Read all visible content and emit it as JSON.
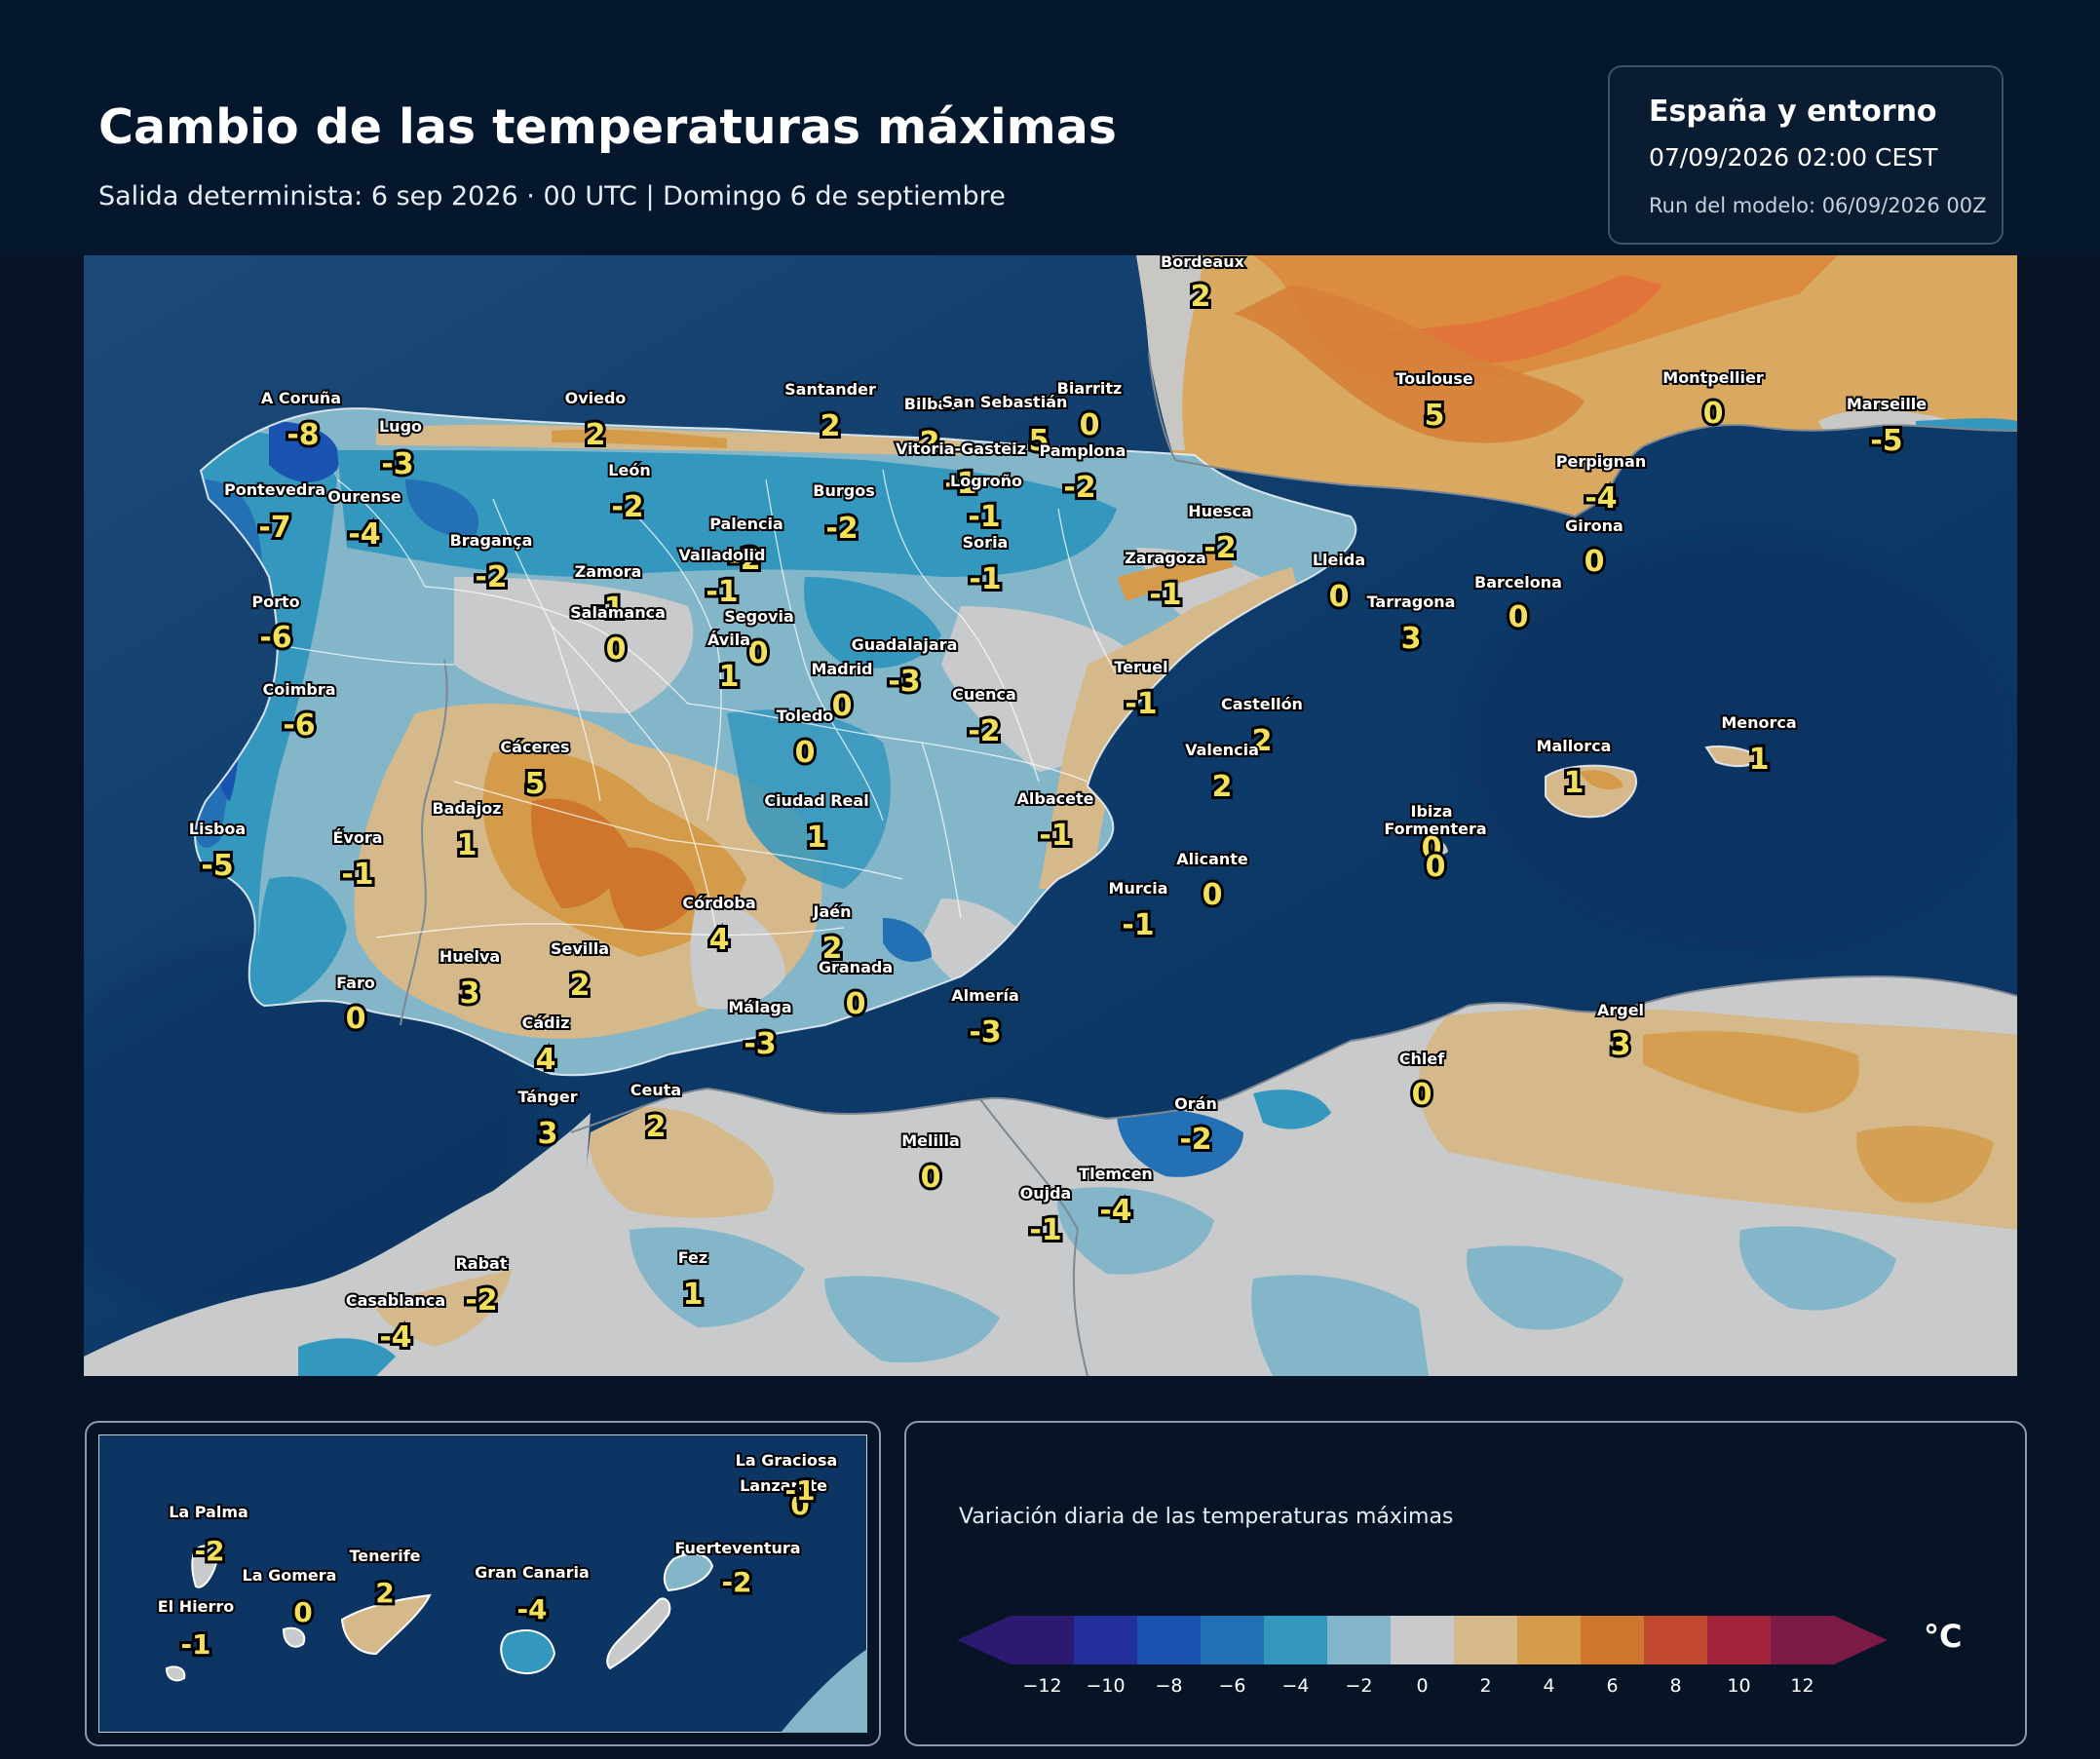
{
  "header": {
    "title": "Cambio de las temperaturas máximas",
    "subtitle": "Salida determinista: 6 sep 2026 · 00 UTC  |  Domingo 6 de septiembre"
  },
  "info": {
    "region": "España y entorno",
    "valid": "07/09/2026  02:00 CEST",
    "run": "Run del modelo: 06/09/2026 00Z"
  },
  "cities": [
    {
      "name": "Bordeaux",
      "value": "2"
    },
    {
      "name": "A Coruña",
      "value": "-8"
    },
    {
      "name": "Oviedo",
      "value": "2"
    },
    {
      "name": "Santander",
      "value": "2"
    },
    {
      "name": "Bilbao",
      "value": "2"
    },
    {
      "name": "Biarritz",
      "value": "0"
    },
    {
      "name": "San Sebastián",
      "value": "5"
    },
    {
      "name": "Vitoria-Gasteiz",
      "value": "-1"
    },
    {
      "name": "Pamplona",
      "value": "-2"
    },
    {
      "name": "Toulouse",
      "value": "5"
    },
    {
      "name": "Montpellier",
      "value": "0"
    },
    {
      "name": "Marseille",
      "value": "-5"
    },
    {
      "name": "Lugo",
      "value": "-3"
    },
    {
      "name": "León",
      "value": "-2"
    },
    {
      "name": "Pontevedra",
      "value": "-7"
    },
    {
      "name": "Ourense",
      "value": "-4"
    },
    {
      "name": "Logroño",
      "value": "-1"
    },
    {
      "name": "Burgos",
      "value": "-2"
    },
    {
      "name": "Palencia",
      "value": "-2"
    },
    {
      "name": "Perpignan",
      "value": "-4"
    },
    {
      "name": "Huesca",
      "value": "-2"
    },
    {
      "name": "Girona",
      "value": "0"
    },
    {
      "name": "Bragança",
      "value": "-2"
    },
    {
      "name": "Valladolid",
      "value": "-1"
    },
    {
      "name": "Soria",
      "value": "-1"
    },
    {
      "name": "Zaragoza",
      "value": "-1"
    },
    {
      "name": "Lleida",
      "value": "0"
    },
    {
      "name": "Zamora",
      "value": "-1"
    },
    {
      "name": "Barcelona",
      "value": "0"
    },
    {
      "name": "Porto",
      "value": "-6"
    },
    {
      "name": "Salamanca",
      "value": "0"
    },
    {
      "name": "Tarragona",
      "value": "3"
    },
    {
      "name": "Segovia",
      "value": "0"
    },
    {
      "name": "Ávila",
      "value": "1"
    },
    {
      "name": "Guadalajara",
      "value": "-3"
    },
    {
      "name": "Madrid",
      "value": "0"
    },
    {
      "name": "Teruel",
      "value": "-1"
    },
    {
      "name": "Coimbra",
      "value": "-6"
    },
    {
      "name": "Cuenca",
      "value": "-2"
    },
    {
      "name": "Toledo",
      "value": "0"
    },
    {
      "name": "Castellón",
      "value": "2"
    },
    {
      "name": "Menorca",
      "value": "1"
    },
    {
      "name": "Cáceres",
      "value": "5"
    },
    {
      "name": "Valencia",
      "value": "2"
    },
    {
      "name": "Mallorca",
      "value": "1"
    },
    {
      "name": "Badajoz",
      "value": "1"
    },
    {
      "name": "Ciudad Real",
      "value": "1"
    },
    {
      "name": "Albacete",
      "value": "-1"
    },
    {
      "name": "Ibiza",
      "value": "0"
    },
    {
      "name": "Formentera",
      "value": "0"
    },
    {
      "name": "Lisboa",
      "value": "-5"
    },
    {
      "name": "Évora",
      "value": "-1"
    },
    {
      "name": "Alicante",
      "value": "0"
    },
    {
      "name": "Córdoba",
      "value": "4"
    },
    {
      "name": "Murcia",
      "value": "-1"
    },
    {
      "name": "Jaén",
      "value": "2"
    },
    {
      "name": "Huelva",
      "value": "3"
    },
    {
      "name": "Sevilla",
      "value": "2"
    },
    {
      "name": "Granada",
      "value": "0"
    },
    {
      "name": "Faro",
      "value": "0"
    },
    {
      "name": "Almería",
      "value": "-3"
    },
    {
      "name": "Málaga",
      "value": "-3"
    },
    {
      "name": "Argel",
      "value": "3"
    },
    {
      "name": "Cádiz",
      "value": "4"
    },
    {
      "name": "Chlef",
      "value": "0"
    },
    {
      "name": "Tánger",
      "value": "3"
    },
    {
      "name": "Ceuta",
      "value": "2"
    },
    {
      "name": "Orán",
      "value": "-2"
    },
    {
      "name": "Melilla",
      "value": "0"
    },
    {
      "name": "Tlemcen",
      "value": "-4"
    },
    {
      "name": "Oujda",
      "value": "-1"
    },
    {
      "name": "Fez",
      "value": "1"
    },
    {
      "name": "Rabat",
      "value": "-2"
    },
    {
      "name": "Casablanca",
      "value": "-4"
    }
  ],
  "canary": [
    {
      "name": "La Graciosa",
      "value": "0"
    },
    {
      "name": "Lanzarote",
      "value": "-1"
    },
    {
      "name": "La Palma",
      "value": "-2"
    },
    {
      "name": "Fuerteventura",
      "value": "-2"
    },
    {
      "name": "Tenerife",
      "value": "2"
    },
    {
      "name": "Gran Canaria",
      "value": "-4"
    },
    {
      "name": "La Gomera",
      "value": "0"
    },
    {
      "name": "El Hierro",
      "value": "-1"
    }
  ],
  "legend": {
    "title": "Variación diaria de las temperaturas máximas",
    "unit": "°C",
    "ticks": [
      "−12",
      "−10",
      "−8",
      "−6",
      "−4",
      "−2",
      "0",
      "2",
      "4",
      "6",
      "8",
      "10",
      "12"
    ],
    "colors": [
      "#2b1a70",
      "#23309b",
      "#1a52b0",
      "#2470b4",
      "#3497bd",
      "#83b6c8",
      "#c9cacb",
      "#d6b98a",
      "#d49c4a",
      "#ce772c",
      "#c24830",
      "#a3233a",
      "#7b1a45"
    ]
  }
}
